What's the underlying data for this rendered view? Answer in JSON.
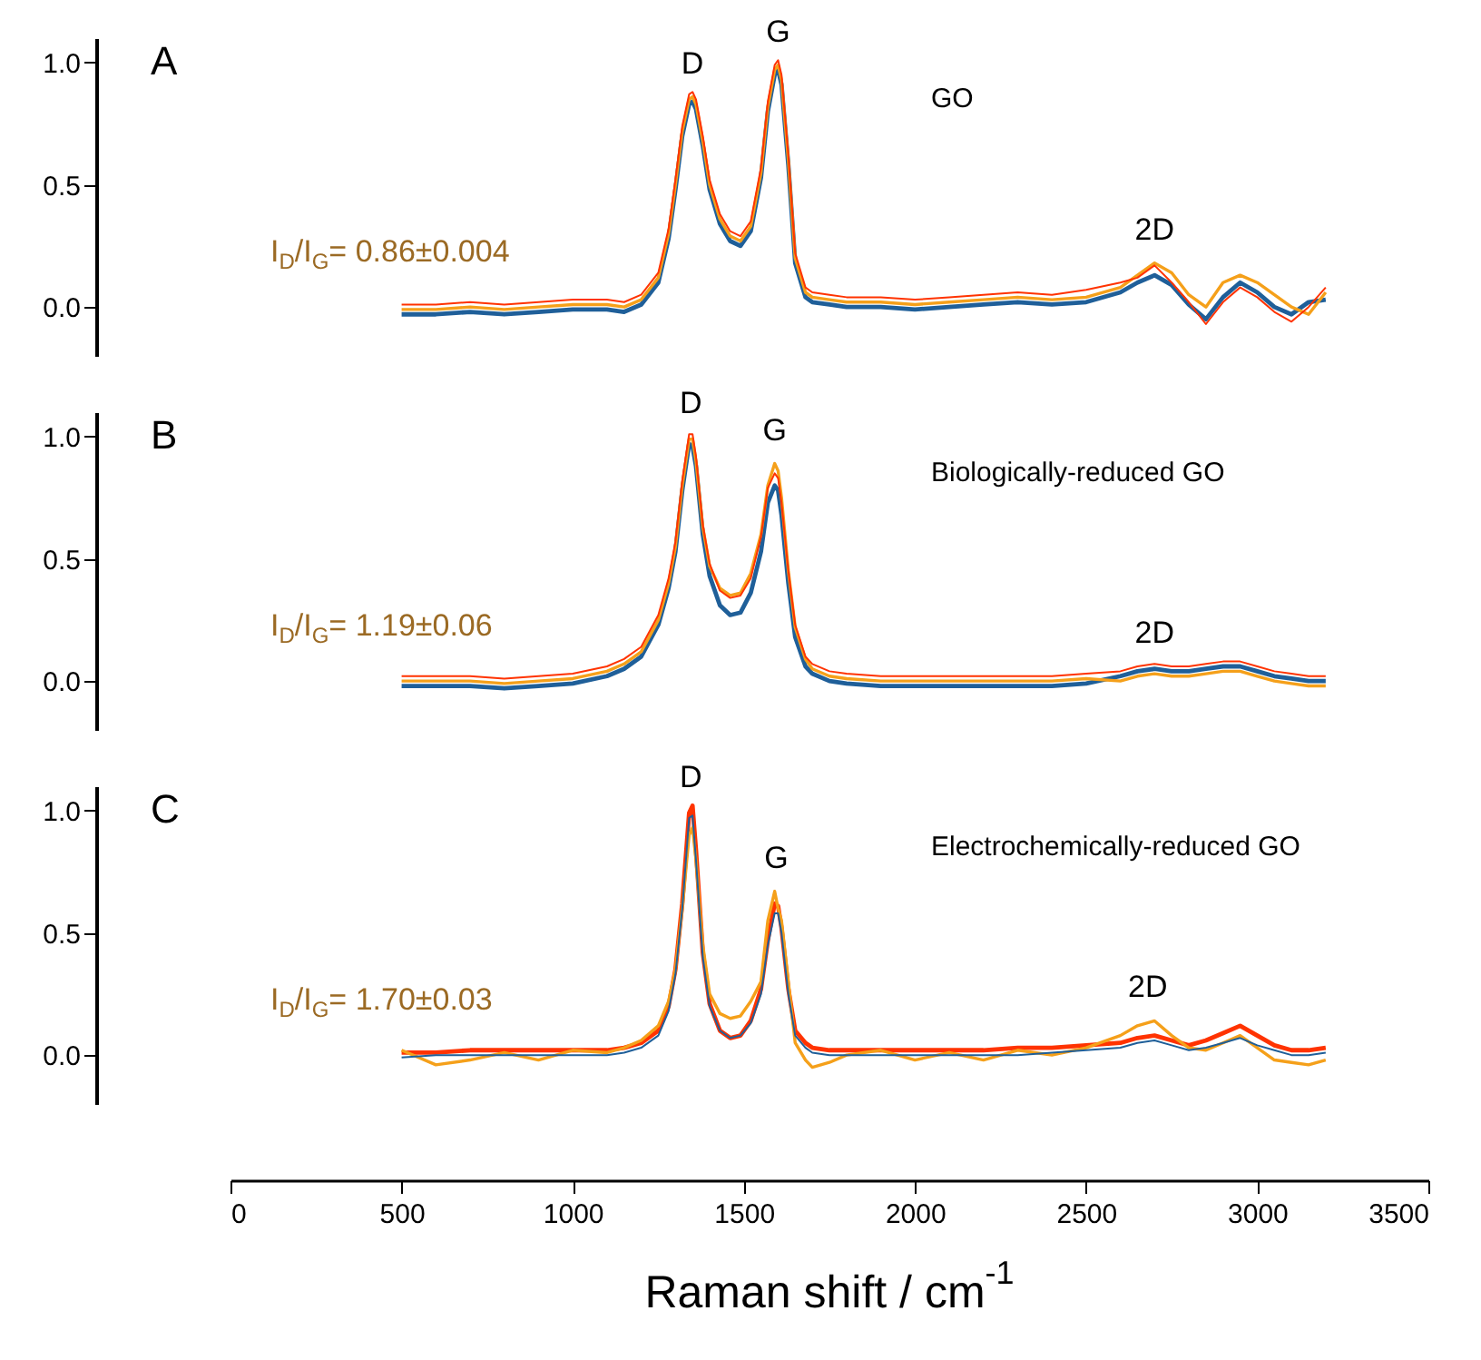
{
  "chart_data": [
    {
      "type": "line",
      "xlim": [
        0,
        3500
      ],
      "ylim": [
        -0.2,
        1.1
      ],
      "yticks": [
        {
          "value": 0,
          "label": "0.0"
        },
        {
          "value": 0.5,
          "label": "0.5"
        },
        {
          "value": 1,
          "label": "1.0"
        }
      ],
      "tick_labels": "y",
      "grid": false,
      "legend": false,
      "marker": "none",
      "line_style": "solid",
      "annotations": [
        "A",
        "I$_{D}$/I$_{G}$= 0.86±0.004",
        "GO",
        {
          "text": "D",
          "x": 1350,
          "y": 0.86
        },
        {
          "text": "G",
          "x": 1600,
          "y": 0.99
        },
        {
          "text": "2D",
          "x": 2700,
          "y": 0.18
        }
      ],
      "x": [
        500,
        600,
        700,
        800,
        900,
        1000,
        1100,
        1150,
        1200,
        1250,
        1280,
        1300,
        1320,
        1340,
        1350,
        1360,
        1380,
        1400,
        1430,
        1460,
        1490,
        1520,
        1550,
        1570,
        1590,
        1600,
        1610,
        1630,
        1650,
        1680,
        1700,
        1750,
        1800,
        1900,
        2000,
        2100,
        2200,
        2300,
        2400,
        2500,
        2600,
        2650,
        2700,
        2750,
        2800,
        2850,
        2900,
        2950,
        3000,
        3050,
        3100,
        3150,
        3200
      ],
      "series": [
        {
          "color": "#1f5f99",
          "values": [
            -0.03,
            -0.03,
            -0.02,
            -0.03,
            -0.02,
            -0.01,
            -0.01,
            -0.02,
            0.01,
            0.1,
            0.28,
            0.48,
            0.7,
            0.83,
            0.84,
            0.81,
            0.66,
            0.48,
            0.34,
            0.27,
            0.25,
            0.31,
            0.53,
            0.8,
            0.95,
            0.97,
            0.91,
            0.58,
            0.18,
            0.04,
            0.02,
            0.01,
            0.0,
            0.0,
            -0.01,
            0.0,
            0.01,
            0.02,
            0.01,
            0.02,
            0.06,
            0.1,
            0.13,
            0.09,
            0.01,
            -0.05,
            0.04,
            0.1,
            0.06,
            0.0,
            -0.03,
            0.02,
            0.03
          ]
        },
        {
          "color": "#f5a01a",
          "values": [
            -0.01,
            -0.01,
            0.0,
            -0.01,
            0.0,
            0.01,
            0.01,
            0.0,
            0.03,
            0.12,
            0.3,
            0.5,
            0.72,
            0.85,
            0.86,
            0.83,
            0.68,
            0.5,
            0.36,
            0.29,
            0.27,
            0.33,
            0.55,
            0.82,
            0.97,
            0.99,
            0.93,
            0.6,
            0.2,
            0.06,
            0.04,
            0.03,
            0.02,
            0.02,
            0.01,
            0.02,
            0.03,
            0.04,
            0.03,
            0.04,
            0.08,
            0.13,
            0.18,
            0.14,
            0.05,
            0.0,
            0.1,
            0.13,
            0.1,
            0.05,
            0.0,
            -0.03,
            0.06
          ]
        },
        {
          "color": "#ff3300",
          "values": [
            0.01,
            0.01,
            0.02,
            0.01,
            0.02,
            0.03,
            0.03,
            0.02,
            0.05,
            0.14,
            0.32,
            0.52,
            0.74,
            0.87,
            0.88,
            0.85,
            0.7,
            0.52,
            0.38,
            0.31,
            0.29,
            0.35,
            0.57,
            0.84,
            0.99,
            1.01,
            0.95,
            0.62,
            0.22,
            0.08,
            0.06,
            0.05,
            0.04,
            0.04,
            0.03,
            0.04,
            0.05,
            0.06,
            0.05,
            0.07,
            0.1,
            0.12,
            0.17,
            0.1,
            0.02,
            -0.07,
            0.02,
            0.08,
            0.04,
            -0.02,
            -0.06,
            0.0,
            0.08
          ]
        }
      ]
    },
    {
      "type": "line",
      "xlim": [
        0,
        3500
      ],
      "ylim": [
        -0.2,
        1.1
      ],
      "yticks": [
        {
          "value": 0,
          "label": "0.0"
        },
        {
          "value": 0.5,
          "label": "0.5"
        },
        {
          "value": 1,
          "label": "1.0"
        }
      ],
      "tick_labels": "y",
      "grid": false,
      "legend": false,
      "marker": "none",
      "line_style": "solid",
      "annotations": [
        "B",
        "I$_{D}$/I$_{G}$= 1.19±0.06",
        "Biologically-reduced GO",
        {
          "text": "D",
          "x": 1345,
          "y": 1.0
        },
        {
          "text": "G",
          "x": 1590,
          "y": 0.89
        },
        {
          "text": "2D",
          "x": 2700,
          "y": 0.06
        }
      ],
      "x": [
        500,
        600,
        700,
        800,
        900,
        1000,
        1100,
        1150,
        1200,
        1250,
        1280,
        1300,
        1320,
        1340,
        1350,
        1360,
        1380,
        1400,
        1430,
        1460,
        1490,
        1520,
        1550,
        1570,
        1590,
        1600,
        1610,
        1630,
        1650,
        1680,
        1700,
        1750,
        1800,
        1900,
        2000,
        2100,
        2200,
        2300,
        2400,
        2500,
        2600,
        2650,
        2700,
        2750,
        2800,
        2850,
        2900,
        2950,
        3000,
        3050,
        3100,
        3150,
        3200
      ],
      "series": [
        {
          "color": "#1f5f99",
          "values": [
            -0.02,
            -0.02,
            -0.02,
            -0.03,
            -0.02,
            -0.01,
            0.02,
            0.05,
            0.1,
            0.23,
            0.38,
            0.53,
            0.78,
            0.97,
            0.96,
            0.88,
            0.6,
            0.43,
            0.31,
            0.27,
            0.28,
            0.36,
            0.53,
            0.73,
            0.8,
            0.78,
            0.68,
            0.4,
            0.18,
            0.06,
            0.03,
            0.0,
            -0.01,
            -0.02,
            -0.02,
            -0.02,
            -0.02,
            -0.02,
            -0.02,
            -0.01,
            0.02,
            0.04,
            0.05,
            0.04,
            0.04,
            0.05,
            0.06,
            0.06,
            0.04,
            0.02,
            0.01,
            0.0,
            0.0
          ]
        },
        {
          "color": "#f5a01a",
          "values": [
            0.0,
            0.0,
            0.0,
            -0.01,
            0.0,
            0.01,
            0.04,
            0.07,
            0.12,
            0.25,
            0.4,
            0.55,
            0.8,
            0.99,
            0.99,
            0.9,
            0.63,
            0.47,
            0.38,
            0.35,
            0.36,
            0.44,
            0.6,
            0.8,
            0.89,
            0.86,
            0.75,
            0.45,
            0.22,
            0.09,
            0.05,
            0.02,
            0.01,
            0.0,
            0.0,
            0.0,
            0.0,
            0.0,
            0.0,
            0.01,
            0.0,
            0.02,
            0.03,
            0.02,
            0.02,
            0.03,
            0.04,
            0.04,
            0.02,
            0.0,
            -0.01,
            -0.02,
            -0.02
          ]
        },
        {
          "color": "#ff3300",
          "values": [
            0.02,
            0.02,
            0.02,
            0.01,
            0.02,
            0.03,
            0.06,
            0.09,
            0.14,
            0.27,
            0.42,
            0.57,
            0.82,
            1.01,
            1.01,
            0.92,
            0.64,
            0.48,
            0.37,
            0.34,
            0.35,
            0.42,
            0.59,
            0.79,
            0.85,
            0.83,
            0.73,
            0.45,
            0.23,
            0.1,
            0.07,
            0.04,
            0.03,
            0.02,
            0.02,
            0.02,
            0.02,
            0.02,
            0.02,
            0.03,
            0.04,
            0.06,
            0.07,
            0.06,
            0.06,
            0.07,
            0.08,
            0.08,
            0.06,
            0.04,
            0.03,
            0.02,
            0.02
          ]
        }
      ]
    },
    {
      "type": "line",
      "xlim": [
        0,
        3500
      ],
      "ylim": [
        -0.2,
        1.1
      ],
      "yticks": [
        {
          "value": 0,
          "label": "0.0"
        },
        {
          "value": 0.5,
          "label": "0.5"
        },
        {
          "value": 1,
          "label": "1.0"
        }
      ],
      "xticks": [
        0,
        500,
        1000,
        1500,
        2000,
        2500,
        3000,
        3500
      ],
      "xlabel": "Raman shift / cm$^{-1}$",
      "grid": false,
      "legend": false,
      "marker": "none",
      "line_style": "solid",
      "annotations": [
        "C",
        "I$_{D}$/I$_{G}$= 1.70±0.03",
        "Electrochemically-reduced GO",
        {
          "text": "D",
          "x": 1345,
          "y": 1.0
        },
        {
          "text": "G",
          "x": 1595,
          "y": 0.67
        },
        {
          "text": "2D",
          "x": 2680,
          "y": 0.14
        }
      ],
      "x": [
        500,
        600,
        700,
        800,
        900,
        1000,
        1100,
        1150,
        1200,
        1250,
        1280,
        1300,
        1320,
        1340,
        1350,
        1360,
        1380,
        1400,
        1430,
        1460,
        1490,
        1520,
        1550,
        1570,
        1590,
        1600,
        1610,
        1630,
        1650,
        1680,
        1700,
        1750,
        1800,
        1900,
        2000,
        2100,
        2200,
        2300,
        2400,
        2500,
        2600,
        2650,
        2700,
        2750,
        2800,
        2850,
        2900,
        2950,
        3000,
        3050,
        3100,
        3150,
        3200
      ],
      "series": [
        {
          "color": "#ff3300",
          "values": [
            0.01,
            0.01,
            0.02,
            0.02,
            0.02,
            0.02,
            0.02,
            0.03,
            0.05,
            0.1,
            0.2,
            0.35,
            0.62,
            0.99,
            1.02,
            0.84,
            0.42,
            0.21,
            0.1,
            0.07,
            0.08,
            0.14,
            0.27,
            0.47,
            0.62,
            0.61,
            0.52,
            0.27,
            0.1,
            0.05,
            0.03,
            0.02,
            0.02,
            0.02,
            0.02,
            0.02,
            0.02,
            0.03,
            0.03,
            0.04,
            0.05,
            0.07,
            0.08,
            0.06,
            0.04,
            0.06,
            0.09,
            0.12,
            0.08,
            0.04,
            0.02,
            0.02,
            0.03
          ]
        },
        {
          "color": "#f5a01a",
          "values": [
            0.02,
            -0.04,
            -0.02,
            0.01,
            -0.02,
            0.02,
            0.01,
            0.03,
            0.06,
            0.12,
            0.22,
            0.35,
            0.6,
            0.9,
            0.93,
            0.8,
            0.45,
            0.25,
            0.17,
            0.15,
            0.16,
            0.22,
            0.3,
            0.55,
            0.67,
            0.6,
            0.55,
            0.3,
            0.05,
            -0.02,
            -0.05,
            -0.03,
            0.0,
            0.02,
            -0.02,
            0.01,
            -0.02,
            0.02,
            0.0,
            0.03,
            0.08,
            0.12,
            0.14,
            0.08,
            0.03,
            0.02,
            0.05,
            0.08,
            0.03,
            -0.02,
            -0.03,
            -0.04,
            -0.02
          ]
        },
        {
          "color": "#1f5f99",
          "values": [
            -0.01,
            0.0,
            0.0,
            0.0,
            0.0,
            0.0,
            0.0,
            0.01,
            0.03,
            0.08,
            0.18,
            0.33,
            0.6,
            0.97,
            0.98,
            0.8,
            0.4,
            0.2,
            0.1,
            0.07,
            0.08,
            0.13,
            0.25,
            0.45,
            0.58,
            0.58,
            0.5,
            0.25,
            0.08,
            0.03,
            0.01,
            0.0,
            0.0,
            0.0,
            0.0,
            0.0,
            0.0,
            0.0,
            0.01,
            0.02,
            0.03,
            0.05,
            0.06,
            0.04,
            0.02,
            0.03,
            0.05,
            0.07,
            0.04,
            0.02,
            0.0,
            0.0,
            0.01
          ]
        }
      ]
    }
  ]
}
